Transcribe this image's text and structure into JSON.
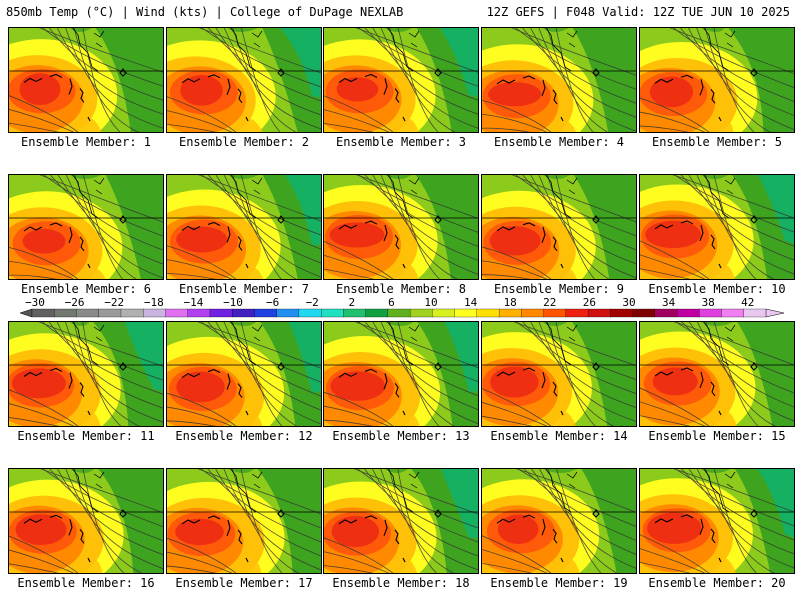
{
  "header": {
    "title": "850mb Temp (°C) | Wind (kts) | College of DuPage NEXLAB",
    "run_info": "12Z GEFS | F048 Valid: 12Z TUE JUN 10 2025"
  },
  "panels": [
    {
      "label": "Ensemble Member: 1",
      "member": 1
    },
    {
      "label": "Ensemble Member: 2",
      "member": 2
    },
    {
      "label": "Ensemble Member: 3",
      "member": 3
    },
    {
      "label": "Ensemble Member: 4",
      "member": 4
    },
    {
      "label": "Ensemble Member: 5",
      "member": 5
    },
    {
      "label": "Ensemble Member: 6",
      "member": 6
    },
    {
      "label": "Ensemble Member: 7",
      "member": 7
    },
    {
      "label": "Ensemble Member: 8",
      "member": 8
    },
    {
      "label": "Ensemble Member: 9",
      "member": 9
    },
    {
      "label": "Ensemble Member: 10",
      "member": 10
    },
    {
      "label": "Ensemble Member: 11",
      "member": 11
    },
    {
      "label": "Ensemble Member: 12",
      "member": 12
    },
    {
      "label": "Ensemble Member: 13",
      "member": 13
    },
    {
      "label": "Ensemble Member: 14",
      "member": 14
    },
    {
      "label": "Ensemble Member: 15",
      "member": 15
    },
    {
      "label": "Ensemble Member: 16",
      "member": 16
    },
    {
      "label": "Ensemble Member: 17",
      "member": 17
    },
    {
      "label": "Ensemble Member: 18",
      "member": 18
    },
    {
      "label": "Ensemble Member: 19",
      "member": 19
    },
    {
      "label": "Ensemble Member: 20",
      "member": 20
    }
  ],
  "colorbar": {
    "tick_labels": [
      "−30",
      "−26",
      "−22",
      "−18",
      "−14",
      "−10",
      "−6",
      "−2",
      "2",
      "6",
      "10",
      "14",
      "18",
      "22",
      "26",
      "30",
      "34",
      "38",
      "42"
    ],
    "colors": [
      "#606060",
      "#707870",
      "#8a8a8a",
      "#9a9a9a",
      "#b0b0b0",
      "#c8b4e0",
      "#e070f0",
      "#b040f0",
      "#7020e0",
      "#4020c0",
      "#2040e0",
      "#2090f0",
      "#20d8f0",
      "#20e0c0",
      "#20c070",
      "#10a040",
      "#60b020",
      "#a0d020",
      "#d8f020",
      "#ffff20",
      "#ffe000",
      "#ffb000",
      "#ff8800",
      "#ff5500",
      "#f02010",
      "#d01010",
      "#a00000",
      "#800000",
      "#a00060",
      "#c000a0",
      "#e040e0",
      "#f080f0",
      "#e8c8f0"
    ]
  },
  "field_colors": {
    "cold": "#12b16a",
    "cool": "#3ea31f",
    "mild": "#8ccb1c",
    "warm": "#fffc20",
    "warmer": "#ffc108",
    "hot": "#ff8a00",
    "hotter": "#ff5a0a",
    "peak": "#ef2f12"
  }
}
